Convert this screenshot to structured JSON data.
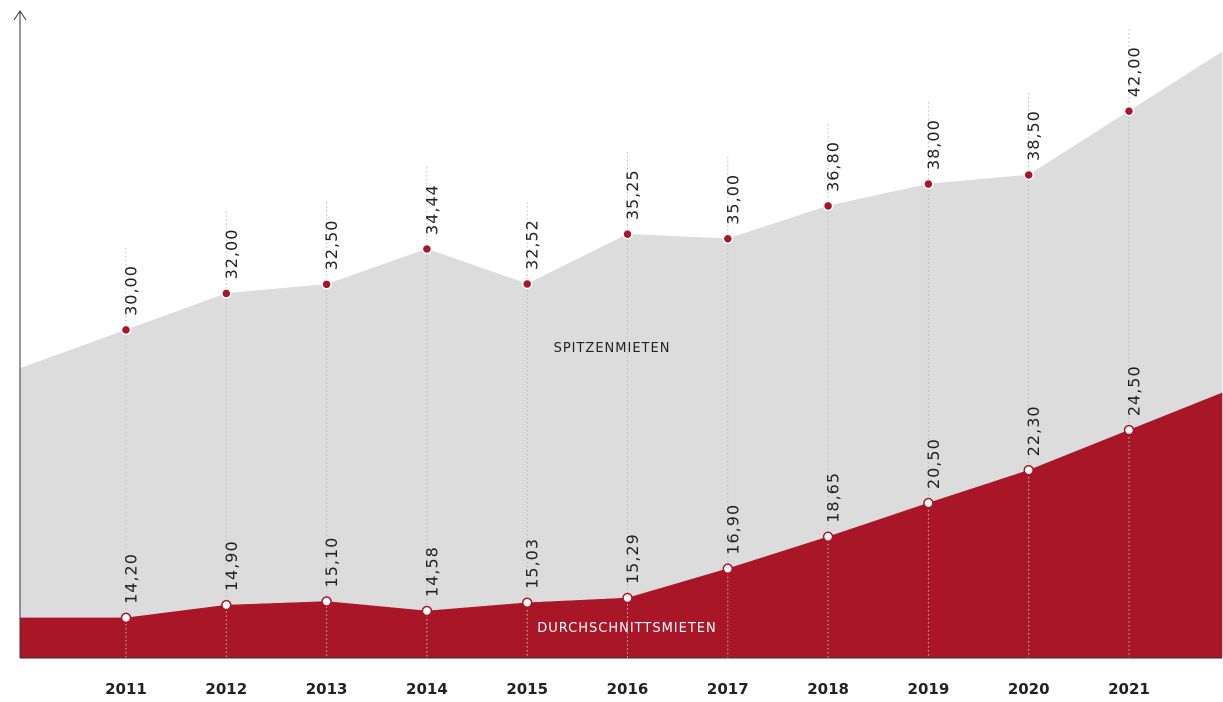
{
  "chart_data": {
    "type": "area",
    "categories": [
      "2011",
      "2012",
      "2013",
      "2014",
      "2015",
      "2016",
      "2017",
      "2018",
      "2019",
      "2020",
      "2021"
    ],
    "series": [
      {
        "name": "SPITZENMIETEN",
        "color": "#dcdcdc",
        "marker_color": "#a91627",
        "values": [
          30.0,
          32.0,
          32.5,
          34.44,
          32.52,
          35.25,
          35.0,
          36.8,
          38.0,
          38.5,
          42.0
        ],
        "value_labels": [
          "30,00",
          "32,00",
          "32,50",
          "34,44",
          "32,52",
          "35,25",
          "35,00",
          "36,80",
          "38,00",
          "38,50",
          "42,00"
        ]
      },
      {
        "name": "DURCHSCHNITTSMIETEN",
        "color": "#a91627",
        "marker_color": "#ffffff",
        "values": [
          14.2,
          14.9,
          15.1,
          14.58,
          15.03,
          15.29,
          16.9,
          18.65,
          20.5,
          22.3,
          24.5
        ],
        "value_labels": [
          "14,20",
          "14,90",
          "15,10",
          "14,58",
          "15,03",
          "15,29",
          "16,90",
          "18,65",
          "20,50",
          "22,30",
          "24,50"
        ]
      }
    ],
    "ylim": [
      12,
      47
    ]
  }
}
